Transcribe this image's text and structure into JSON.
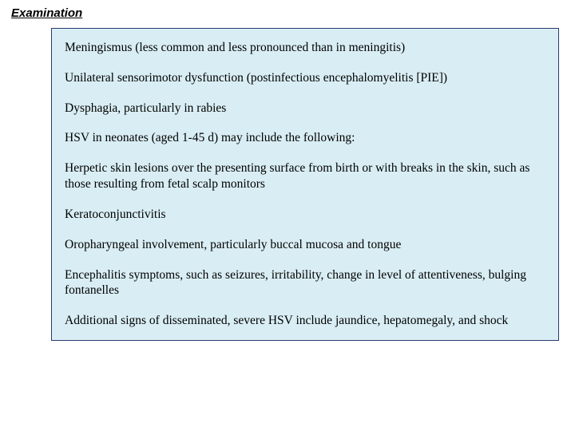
{
  "heading": "Examination",
  "panel": {
    "background_color": "#d9eef4",
    "border_color": "#2a3b6f",
    "items": [
      "Meningismus (less common and less pronounced than in meningitis)",
      "Unilateral sensorimotor dysfunction (postinfectious encephalomyelitis [PIE])",
      "Dysphagia, particularly in rabies",
      "HSV in neonates (aged 1-45 d) may include the following:",
      "Herpetic skin lesions over the presenting surface from birth or with breaks in the skin, such as those resulting from fetal scalp monitors",
      "Keratoconjunctivitis",
      "Oropharyngeal involvement, particularly buccal mucosa and tongue",
      "Encephalitis symptoms, such as seizures, irritability, change in level of attentiveness, bulging fontanelles",
      "Additional signs of disseminated, severe HSV include jaundice, hepatomegaly, and shock"
    ]
  }
}
